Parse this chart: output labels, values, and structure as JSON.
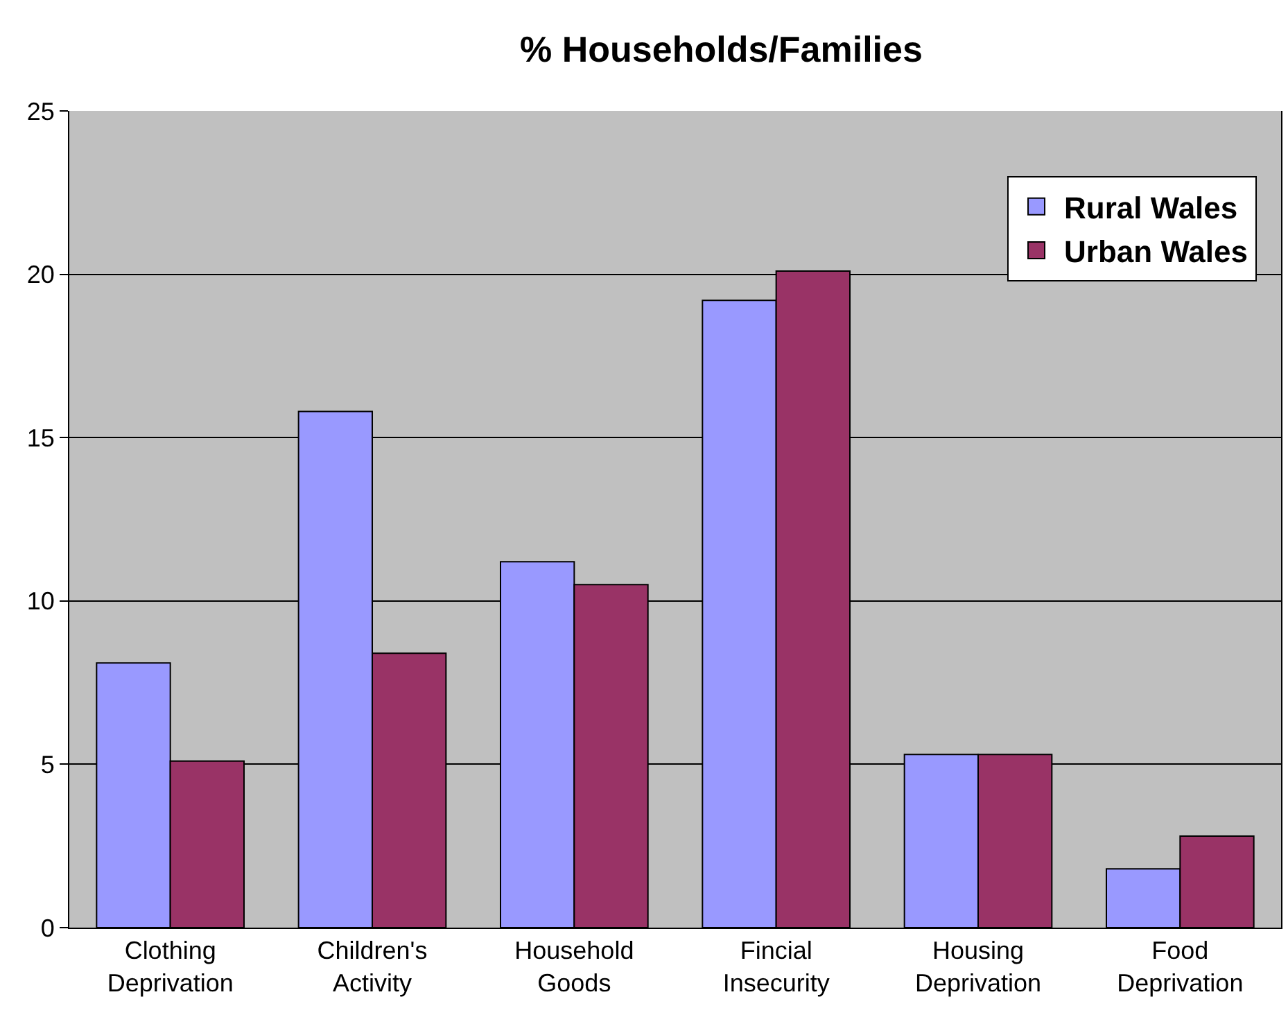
{
  "chart_data": {
    "type": "bar",
    "title": "% Households/Families",
    "categories": [
      "Clothing Deprivation",
      "Children's Activity",
      "Household Goods",
      "Fincial Insecurity",
      "Housing Deprivation",
      "Food Deprivation"
    ],
    "series": [
      {
        "name": "Rural Wales",
        "color": "#9999ff",
        "values": [
          8.1,
          15.8,
          11.2,
          19.2,
          5.3,
          1.8
        ]
      },
      {
        "name": "Urban Wales",
        "color": "#993366",
        "values": [
          5.1,
          8.4,
          10.5,
          20.1,
          5.3,
          2.8
        ]
      }
    ],
    "ylim": [
      0,
      25
    ],
    "yticks": [
      0,
      5,
      10,
      15,
      20,
      25
    ],
    "grid": "y",
    "legend": "top right"
  }
}
